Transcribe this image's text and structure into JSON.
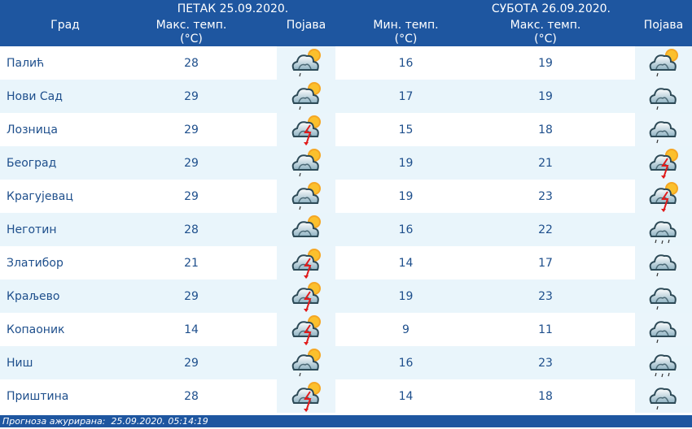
{
  "header": {
    "day1": "ПЕТАК  25.09.2020.",
    "day2": "СУБОТА  26.09.2020.",
    "city": "Град",
    "max1": "Макс. темп.",
    "unit": "(°C)",
    "phen": "Појава",
    "min2": "Мин. темп.",
    "max2": "Макс. темп."
  },
  "rows": [
    {
      "city": "Палић",
      "max1": "28",
      "icon1": "sun-cloud-rain",
      "min2": "16",
      "max2": "19",
      "icon2": "sun-cloud-rain"
    },
    {
      "city": "Нови Сад",
      "max1": "29",
      "icon1": "sun-cloud-rain",
      "min2": "17",
      "max2": "19",
      "icon2": "cloud-rain"
    },
    {
      "city": "Лозница",
      "max1": "29",
      "icon1": "sun-cloud-storm",
      "min2": "15",
      "max2": "18",
      "icon2": "cloud-rain"
    },
    {
      "city": "Београд",
      "max1": "29",
      "icon1": "sun-cloud-rain",
      "min2": "19",
      "max2": "21",
      "icon2": "sun-cloud-storm"
    },
    {
      "city": "Крагујевац",
      "max1": "29",
      "icon1": "sun-cloud-rain",
      "min2": "19",
      "max2": "23",
      "icon2": "sun-cloud-storm"
    },
    {
      "city": "Неготин",
      "max1": "28",
      "icon1": "sun-cloud",
      "min2": "16",
      "max2": "22",
      "icon2": "cloud-heavy-rain"
    },
    {
      "city": "Златибор",
      "max1": "21",
      "icon1": "sun-cloud-storm",
      "min2": "14",
      "max2": "17",
      "icon2": "cloud-rain"
    },
    {
      "city": "Краљево",
      "max1": "29",
      "icon1": "sun-cloud-storm",
      "min2": "19",
      "max2": "23",
      "icon2": "cloud-rain"
    },
    {
      "city": "Копаоник",
      "max1": "14",
      "icon1": "sun-cloud-storm",
      "min2": "9",
      "max2": "11",
      "icon2": "cloud-rain"
    },
    {
      "city": "Ниш",
      "max1": "29",
      "icon1": "sun-cloud-rain",
      "min2": "16",
      "max2": "23",
      "icon2": "cloud-heavy-rain"
    },
    {
      "city": "Приштина",
      "max1": "28",
      "icon1": "sun-cloud-storm",
      "min2": "14",
      "max2": "18",
      "icon2": "cloud-rain"
    }
  ],
  "footer": "Прогноза ажурирана:  25.09.2020. 05:14:19"
}
